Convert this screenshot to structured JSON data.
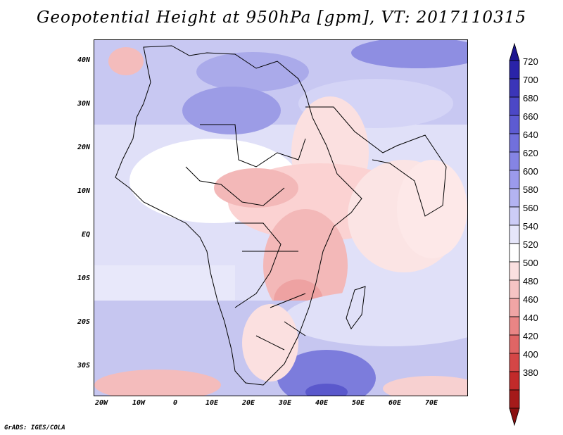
{
  "title": "Geopotential Height at 950hPa [gpm], VT: 2017110315",
  "footer": "GrADS: IGES/COLA",
  "map": {
    "lat_labels": [
      "40N",
      "30N",
      "20N",
      "10N",
      "EQ",
      "10S",
      "20S",
      "30S"
    ],
    "lon_labels": [
      "20W",
      "10W",
      "0",
      "10E",
      "20E",
      "30E",
      "40E",
      "50E",
      "60E",
      "70E"
    ]
  },
  "colorbar": {
    "labels": [
      "720",
      "700",
      "680",
      "660",
      "640",
      "620",
      "600",
      "580",
      "560",
      "540",
      "520",
      "500",
      "480",
      "460",
      "440",
      "420",
      "400",
      "380"
    ],
    "colors": [
      "#2a23a8",
      "#3b35b8",
      "#4c48c6",
      "#5d5bd2",
      "#7170dc",
      "#8584e4",
      "#9b9aec",
      "#b3b3f2",
      "#ccccf6",
      "#e6e6fa",
      "#ffffff",
      "#fbe0e0",
      "#f6c4c4",
      "#f0a5a5",
      "#e98585",
      "#e06565",
      "#d44646",
      "#c22a2a",
      "#a51a1a"
    ],
    "top_arrow_color": "#1c1690",
    "bottom_arrow_color": "#8a1010"
  }
}
